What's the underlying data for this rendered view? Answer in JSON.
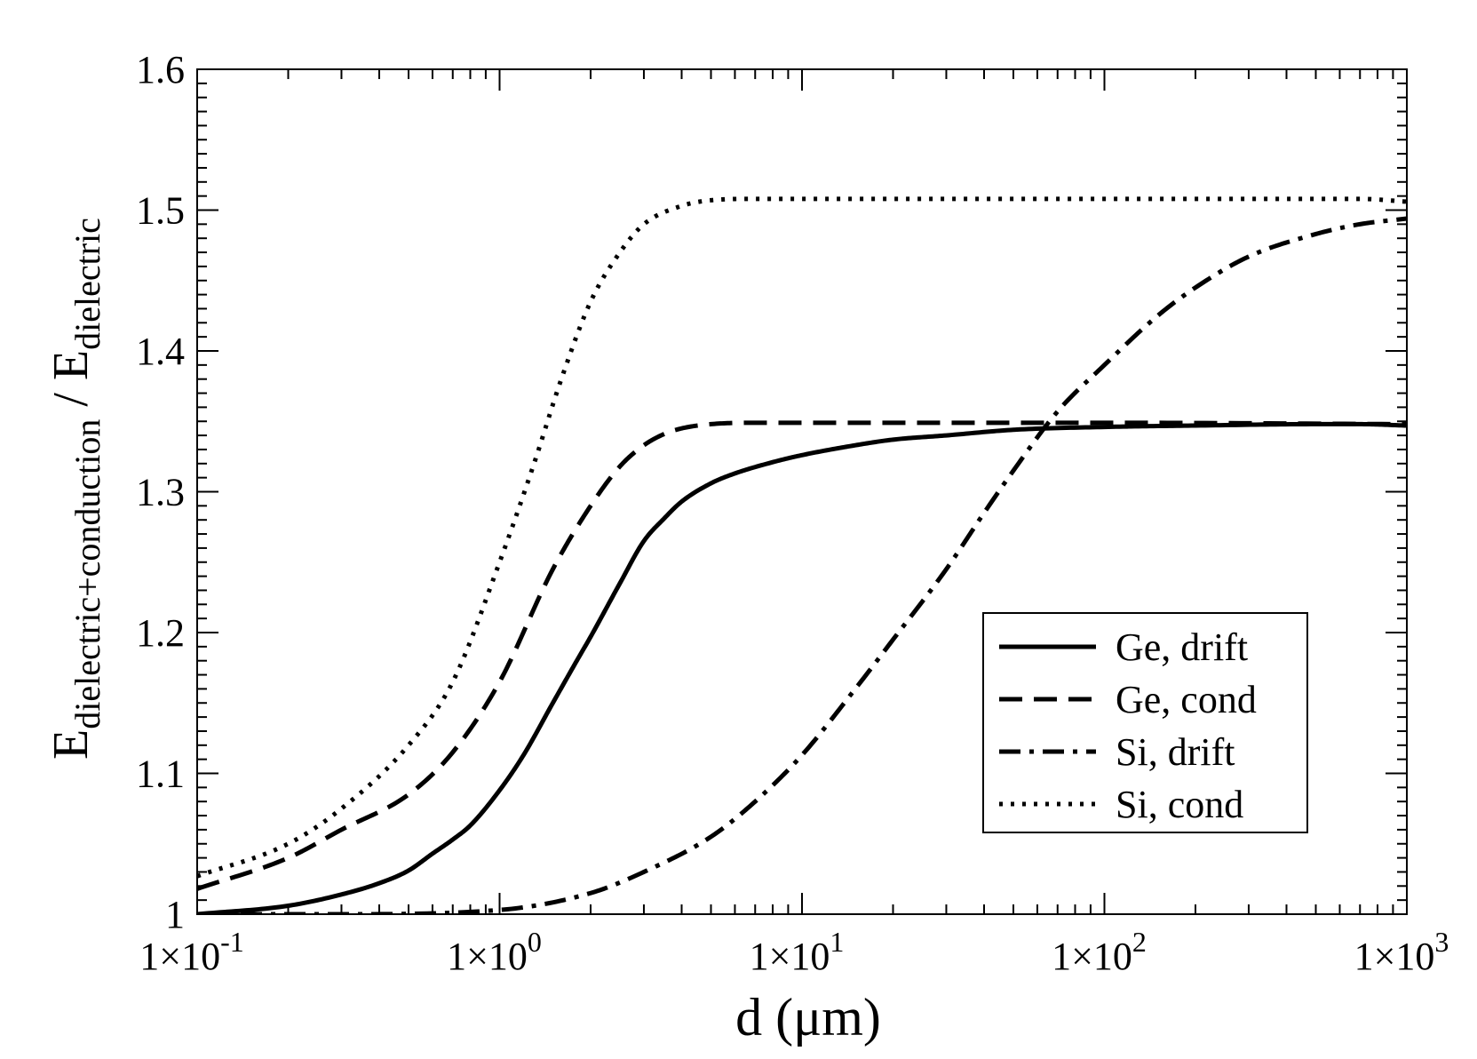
{
  "chart_data": {
    "type": "line",
    "title": "",
    "xlabel": "d (μm)",
    "ylabel": {
      "base": "E",
      "num_sub": "dielectric+conduction",
      "sep": " / ",
      "den_sub": "dielectric"
    },
    "x_scale": "log",
    "xlim": [
      0.1,
      1000
    ],
    "ylim": [
      1.0,
      1.6
    ],
    "x_ticks": [
      {
        "value": 0.1,
        "label": "1×10",
        "exp": "-1"
      },
      {
        "value": 1,
        "label": "1×10",
        "exp": "0"
      },
      {
        "value": 10,
        "label": "1×10",
        "exp": "1"
      },
      {
        "value": 100,
        "label": "1×10",
        "exp": "2"
      },
      {
        "value": 1000,
        "label": "1×10",
        "exp": "3"
      }
    ],
    "y_ticks": [
      {
        "value": 1.0,
        "label": "1"
      },
      {
        "value": 1.1,
        "label": "1.1"
      },
      {
        "value": 1.2,
        "label": "1.2"
      },
      {
        "value": 1.3,
        "label": "1.3"
      },
      {
        "value": 1.4,
        "label": "1.4"
      },
      {
        "value": 1.5,
        "label": "1.5"
      },
      {
        "value": 1.6,
        "label": "1.6"
      }
    ],
    "grid": false,
    "legend_position": "lower-right",
    "series": [
      {
        "name": "Ge, drift",
        "style": "solid",
        "x": [
          0.1,
          0.2,
          0.3,
          0.4,
          0.5,
          0.6,
          0.7,
          0.8,
          1.0,
          1.2,
          1.5,
          1.8,
          2.0,
          2.5,
          3.0,
          3.5,
          4.0,
          5.0,
          6.0,
          8.0,
          10,
          15,
          20,
          30,
          50,
          100,
          200,
          500,
          700,
          1000
        ],
        "y": [
          1.0,
          1.006,
          1.014,
          1.022,
          1.031,
          1.043,
          1.053,
          1.063,
          1.088,
          1.113,
          1.15,
          1.18,
          1.197,
          1.235,
          1.265,
          1.281,
          1.293,
          1.306,
          1.313,
          1.321,
          1.326,
          1.333,
          1.337,
          1.34,
          1.344,
          1.346,
          1.347,
          1.348,
          1.348,
          1.347
        ]
      },
      {
        "name": "Ge, cond",
        "style": "dashed",
        "x": [
          0.1,
          0.2,
          0.3,
          0.5,
          0.7,
          1.0,
          1.5,
          2.0,
          2.5,
          3.0,
          3.5,
          4.0,
          5.0,
          7.0,
          10,
          20,
          50,
          100,
          1000
        ],
        "y": [
          1.018,
          1.04,
          1.06,
          1.085,
          1.115,
          1.165,
          1.245,
          1.29,
          1.318,
          1.333,
          1.341,
          1.345,
          1.348,
          1.349,
          1.349,
          1.349,
          1.349,
          1.349,
          1.348
        ]
      },
      {
        "name": "Si, drift",
        "style": "dashdot",
        "x": [
          0.1,
          0.3,
          1.0,
          2.0,
          3.0,
          5.0,
          7.0,
          10,
          15,
          20,
          30,
          40,
          50,
          70,
          100,
          150,
          200,
          300,
          500,
          700,
          1000
        ],
        "y": [
          1.0,
          1.0,
          1.003,
          1.015,
          1.03,
          1.055,
          1.08,
          1.113,
          1.16,
          1.195,
          1.245,
          1.285,
          1.315,
          1.357,
          1.39,
          1.425,
          1.445,
          1.467,
          1.483,
          1.49,
          1.494
        ]
      },
      {
        "name": "Si, cond",
        "style": "dotted",
        "x": [
          0.1,
          0.2,
          0.3,
          0.5,
          0.7,
          1.0,
          1.3,
          1.6,
          2.0,
          2.5,
          3.0,
          4.0,
          5.0,
          7.0,
          10,
          100,
          700,
          1000
        ],
        "y": [
          1.027,
          1.05,
          1.075,
          1.12,
          1.165,
          1.25,
          1.32,
          1.38,
          1.435,
          1.47,
          1.49,
          1.503,
          1.507,
          1.508,
          1.508,
          1.508,
          1.508,
          1.506
        ]
      }
    ]
  }
}
